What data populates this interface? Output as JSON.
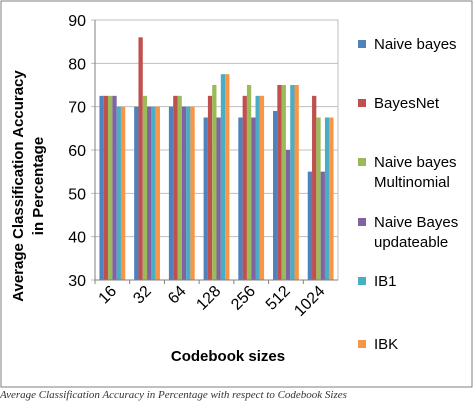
{
  "chart_data": {
    "type": "bar",
    "title": "",
    "xlabel": "Codebook sizes",
    "ylabel_line1": "Average Classification Accuracy",
    "ylabel_line2": "in Percentage",
    "ylim": [
      30,
      90
    ],
    "yticks": [
      "30",
      "40",
      "50",
      "60",
      "70",
      "80",
      "90"
    ],
    "grid": true,
    "legend_position": "right",
    "categories": [
      "16",
      "32",
      "64",
      "128",
      "256",
      "512",
      "1024"
    ],
    "series": [
      {
        "name": "Naive bayes",
        "legend_lines": [
          "Naive bayes"
        ],
        "color": "#4F81BD",
        "values": [
          72.5,
          70,
          70,
          67.5,
          67.5,
          69,
          55
        ]
      },
      {
        "name": "BayesNet",
        "legend_lines": [
          "BayesNet"
        ],
        "color": "#C0504D",
        "values": [
          72.5,
          86,
          72.5,
          72.5,
          72.5,
          75,
          72.5
        ]
      },
      {
        "name": "Naive bayes Multinomial",
        "legend_lines": [
          "Naive bayes",
          "Multinomial"
        ],
        "color": "#9BBB59",
        "values": [
          72.5,
          72.5,
          72.5,
          75,
          75,
          75,
          67.5
        ]
      },
      {
        "name": "Naive Bayes updateable",
        "legend_lines": [
          "Naive Bayes",
          "updateable"
        ],
        "color": "#8064A2",
        "values": [
          72.5,
          70,
          70,
          67.5,
          67.5,
          60,
          55
        ]
      },
      {
        "name": "IB1",
        "legend_lines": [
          "IB1"
        ],
        "color": "#4BACC6",
        "values": [
          70,
          70,
          70,
          77.5,
          72.5,
          75,
          67.5
        ]
      },
      {
        "name": "IBK",
        "legend_lines": [
          "IBK"
        ],
        "color": "#F79646",
        "values": [
          70,
          70,
          70,
          77.5,
          72.5,
          75,
          67.5
        ]
      }
    ]
  },
  "caption": "Average Classification Accuracy in Percentage with respect to Codebook Sizes"
}
